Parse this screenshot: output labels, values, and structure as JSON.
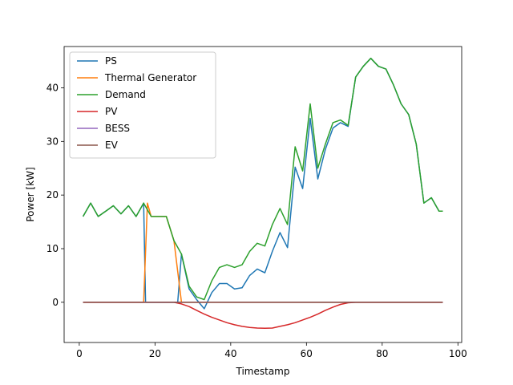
{
  "chart_data": {
    "type": "line",
    "xlabel": "Timestamp",
    "ylabel": "Power [kW]",
    "xlim": [
      -4,
      101
    ],
    "ylim": [
      -7.5,
      47.7
    ],
    "xticks": [
      0,
      20,
      40,
      60,
      80,
      100
    ],
    "yticks": [
      0,
      10,
      20,
      30,
      40
    ],
    "legend": "top-left",
    "grid": false,
    "x": [
      1,
      3,
      5,
      7,
      9,
      11,
      13,
      15,
      17,
      19,
      21,
      23,
      25,
      27,
      29,
      31,
      33,
      35,
      37,
      39,
      41,
      43,
      45,
      47,
      49,
      51,
      53,
      55,
      57,
      59,
      61,
      63,
      65,
      67,
      69,
      71,
      73,
      75,
      77,
      79,
      81,
      83,
      85,
      87,
      89,
      91,
      93,
      95,
      96
    ],
    "series": [
      {
        "name": "PS",
        "color": "#1f77b4",
        "points": [
          [
            1,
            16
          ],
          [
            3,
            18.5
          ],
          [
            5,
            16
          ],
          [
            7,
            17
          ],
          [
            9,
            18
          ],
          [
            11,
            16.5
          ],
          [
            13,
            18
          ],
          [
            15,
            16
          ],
          [
            17,
            18.5
          ],
          [
            17.5,
            0
          ],
          [
            18,
            0
          ],
          [
            19,
            0
          ],
          [
            21,
            0
          ],
          [
            23,
            0
          ],
          [
            25,
            0
          ],
          [
            26,
            0
          ],
          [
            27,
            9
          ],
          [
            29,
            2.5
          ],
          [
            31,
            0.5
          ],
          [
            33,
            -1.2
          ],
          [
            35,
            1.8
          ],
          [
            37,
            3.5
          ],
          [
            39,
            3.5
          ],
          [
            41,
            2.5
          ],
          [
            43,
            2.7
          ],
          [
            45,
            5
          ],
          [
            47,
            6.2
          ],
          [
            49,
            5.5
          ],
          [
            51,
            9.5
          ],
          [
            53,
            13
          ],
          [
            55,
            10.2
          ],
          [
            57,
            25.2
          ],
          [
            59,
            21.2
          ],
          [
            61,
            34.3
          ],
          [
            63,
            23
          ],
          [
            65,
            28.5
          ],
          [
            67,
            32.5
          ],
          [
            69,
            33.5
          ],
          [
            71,
            32.8
          ],
          [
            73,
            42
          ],
          [
            75,
            44
          ],
          [
            77,
            45.5
          ],
          [
            79,
            44
          ],
          [
            81,
            43.5
          ],
          [
            83,
            40.5
          ],
          [
            85,
            37
          ],
          [
            87,
            35
          ],
          [
            89,
            29.5
          ],
          [
            91,
            18.5
          ],
          [
            93,
            19.5
          ],
          [
            95,
            17
          ],
          [
            96,
            17
          ]
        ]
      },
      {
        "name": "Thermal Generator",
        "color": "#ff7f0e",
        "points": [
          [
            1,
            0
          ],
          [
            3,
            0
          ],
          [
            5,
            0
          ],
          [
            7,
            0
          ],
          [
            9,
            0
          ],
          [
            11,
            0
          ],
          [
            13,
            0
          ],
          [
            15,
            0
          ],
          [
            17,
            0
          ],
          [
            18,
            18.5
          ],
          [
            19,
            16
          ],
          [
            21,
            16
          ],
          [
            23,
            16
          ],
          [
            25,
            11.5
          ],
          [
            27,
            0
          ],
          [
            29,
            0
          ],
          [
            31,
            0
          ],
          [
            33,
            0
          ],
          [
            35,
            0
          ],
          [
            37,
            0
          ],
          [
            39,
            0
          ],
          [
            41,
            0
          ],
          [
            43,
            0
          ],
          [
            45,
            0
          ],
          [
            47,
            0
          ],
          [
            49,
            0
          ],
          [
            51,
            0
          ],
          [
            53,
            0
          ],
          [
            55,
            0
          ],
          [
            57,
            0
          ],
          [
            59,
            0
          ],
          [
            61,
            0
          ],
          [
            63,
            0
          ],
          [
            65,
            0
          ],
          [
            67,
            0
          ],
          [
            69,
            0
          ],
          [
            71,
            0
          ],
          [
            73,
            0
          ],
          [
            75,
            0
          ],
          [
            77,
            0
          ],
          [
            79,
            0
          ],
          [
            81,
            0
          ],
          [
            83,
            0
          ],
          [
            85,
            0
          ],
          [
            87,
            0
          ],
          [
            89,
            0
          ],
          [
            91,
            0
          ],
          [
            93,
            0
          ],
          [
            95,
            0
          ],
          [
            96,
            0
          ]
        ]
      },
      {
        "name": "Demand",
        "color": "#2ca02c",
        "points": [
          [
            1,
            16
          ],
          [
            3,
            18.5
          ],
          [
            5,
            16
          ],
          [
            7,
            17
          ],
          [
            9,
            18
          ],
          [
            11,
            16.5
          ],
          [
            13,
            18
          ],
          [
            15,
            16
          ],
          [
            17,
            18.5
          ],
          [
            19,
            16
          ],
          [
            21,
            16
          ],
          [
            23,
            16
          ],
          [
            25,
            11.5
          ],
          [
            27,
            9
          ],
          [
            29,
            3
          ],
          [
            31,
            1
          ],
          [
            33,
            0.5
          ],
          [
            35,
            4
          ],
          [
            37,
            6.5
          ],
          [
            39,
            7
          ],
          [
            41,
            6.5
          ],
          [
            43,
            7
          ],
          [
            45,
            9.5
          ],
          [
            47,
            11
          ],
          [
            49,
            10.5
          ],
          [
            51,
            14.5
          ],
          [
            53,
            17.5
          ],
          [
            55,
            14.5
          ],
          [
            57,
            29
          ],
          [
            59,
            24.5
          ],
          [
            61,
            37
          ],
          [
            63,
            25
          ],
          [
            65,
            29.5
          ],
          [
            67,
            33.5
          ],
          [
            69,
            34
          ],
          [
            71,
            33
          ],
          [
            73,
            42
          ],
          [
            75,
            44
          ],
          [
            77,
            45.5
          ],
          [
            79,
            44
          ],
          [
            81,
            43.5
          ],
          [
            83,
            40.5
          ],
          [
            85,
            37
          ],
          [
            87,
            35
          ],
          [
            89,
            29.5
          ],
          [
            91,
            18.5
          ],
          [
            93,
            19.5
          ],
          [
            95,
            17
          ],
          [
            96,
            17
          ]
        ]
      },
      {
        "name": "PV",
        "color": "#d62728",
        "points": [
          [
            1,
            0
          ],
          [
            5,
            0
          ],
          [
            9,
            0
          ],
          [
            13,
            0
          ],
          [
            17,
            0
          ],
          [
            21,
            0
          ],
          [
            25,
            0
          ],
          [
            27,
            -0.3
          ],
          [
            29,
            -0.8
          ],
          [
            31,
            -1.5
          ],
          [
            33,
            -2.2
          ],
          [
            35,
            -2.8
          ],
          [
            37,
            -3.3
          ],
          [
            39,
            -3.8
          ],
          [
            41,
            -4.2
          ],
          [
            43,
            -4.5
          ],
          [
            45,
            -4.7
          ],
          [
            47,
            -4.8
          ],
          [
            49,
            -4.85
          ],
          [
            51,
            -4.8
          ],
          [
            53,
            -4.5
          ],
          [
            55,
            -4.2
          ],
          [
            57,
            -3.8
          ],
          [
            59,
            -3.3
          ],
          [
            61,
            -2.8
          ],
          [
            63,
            -2.2
          ],
          [
            65,
            -1.5
          ],
          [
            67,
            -0.9
          ],
          [
            69,
            -0.4
          ],
          [
            71,
            -0.1
          ],
          [
            73,
            0
          ],
          [
            77,
            0
          ],
          [
            81,
            0
          ],
          [
            85,
            0
          ],
          [
            89,
            0
          ],
          [
            93,
            0
          ],
          [
            96,
            0
          ]
        ]
      },
      {
        "name": "BESS",
        "color": "#9467bd",
        "points": [
          [
            1,
            0
          ],
          [
            96,
            0
          ]
        ]
      },
      {
        "name": "EV",
        "color": "#8c564b",
        "points": [
          [
            1,
            0
          ],
          [
            96,
            0
          ]
        ]
      }
    ]
  }
}
